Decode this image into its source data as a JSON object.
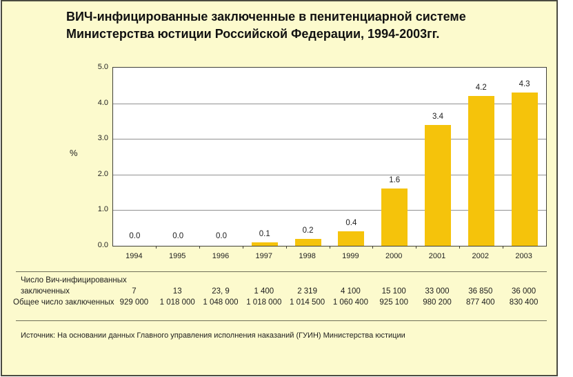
{
  "chart_data": {
    "type": "bar",
    "title": "ВИЧ-инфицированные заключенные в пенитенциарной системе Министерства юстиции Российской Федерации, 1994-2003гг.",
    "categories": [
      "1994",
      "1995",
      "1996",
      "1997",
      "1998",
      "1999",
      "2000",
      "2001",
      "2002",
      "2003"
    ],
    "values": [
      0.0,
      0.0,
      0.0,
      0.1,
      0.2,
      0.4,
      1.6,
      3.4,
      4.2,
      4.3
    ],
    "value_labels": [
      "0.0",
      "0.0",
      "0.0",
      "0.1",
      "0.2",
      "0.4",
      "1.6",
      "3.4",
      "4.2",
      "4.3"
    ],
    "xlabel": "",
    "ylabel": "%",
    "ylim": [
      0,
      5
    ],
    "ytick_labels": [
      "0.0",
      "1.0",
      "2.0",
      "3.0",
      "4.0",
      "5.0"
    ],
    "grid": "horizontal",
    "legend": "none",
    "bar_color": "#F5C30B",
    "table": {
      "rows": [
        {
          "label": "Число Вич-инфицированных заключенных",
          "label_lines": [
            "Число Вич-инфицированных",
            "заключенных"
          ],
          "values": [
            "7",
            "13",
            "23, 9",
            "1 400",
            "2 319",
            "4 100",
            "15 100",
            "33 000",
            "36 850",
            "36 000"
          ]
        },
        {
          "label": "Общее число заключенных",
          "label_lines": [
            "Общее число заключенных"
          ],
          "values": [
            "929 000",
            "1 018 000",
            "1 048 000",
            "1 018 000",
            "1 014 500",
            "1 060 400",
            "925 100",
            "980 200",
            "877 400",
            "830 400"
          ]
        }
      ]
    },
    "source": "Источник: На основании данных Главного управления исполнения наказаний (ГУИН) Министерства юстиции"
  },
  "colors": {
    "card_background": "#FCFACD",
    "plot_background": "#FFFFFF",
    "bar": "#F5C30B",
    "gridline": "#909090",
    "border": "#4A4A40"
  }
}
